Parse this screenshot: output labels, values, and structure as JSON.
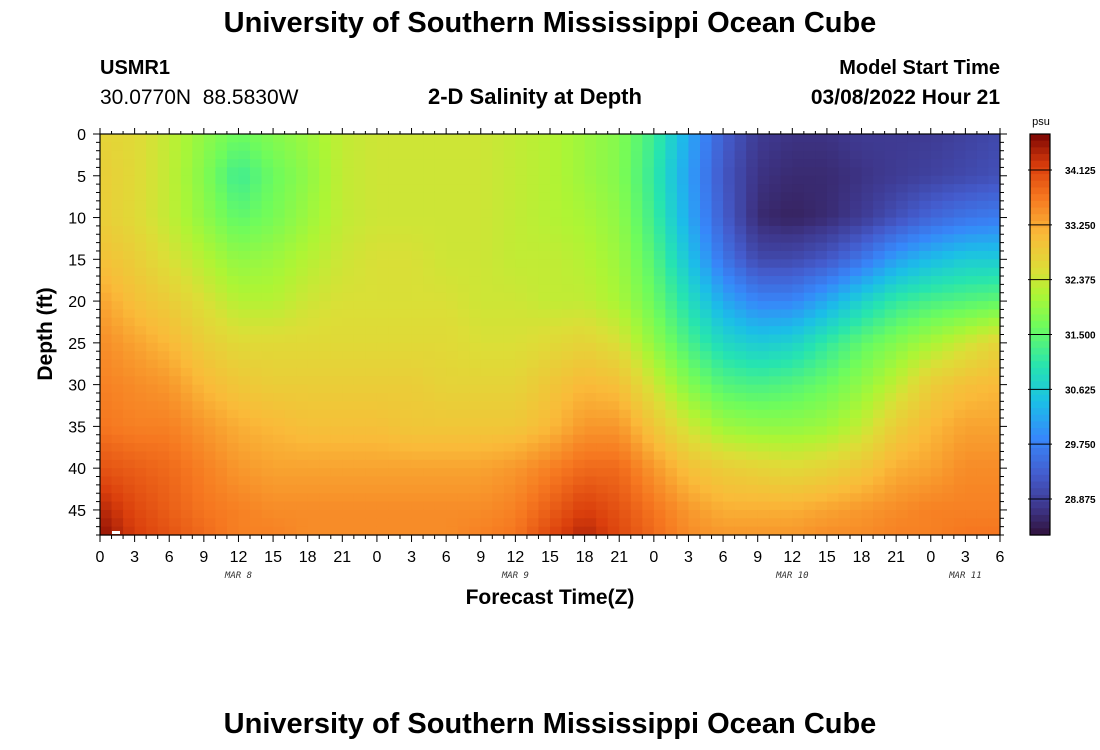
{
  "header": {
    "title": "University of Southern Mississippi Ocean Cube",
    "station_id": "USMR1",
    "coordinates": "30.0770N  88.5830W",
    "plot_title": "2-D Salinity at Depth",
    "model_start_label": "Model Start Time",
    "model_start_value": "03/08/2022 Hour 21"
  },
  "footer": {
    "title": "University of Southern Mississippi Ocean Cube"
  },
  "chart_data": {
    "type": "heatmap",
    "title": "2-D Salinity at Depth",
    "xlabel": "Forecast Time(Z)",
    "ylabel": "Depth (ft)",
    "x_unit": "hours since 03/08 00Z",
    "xlim": [
      0,
      78
    ],
    "ylim": [
      0,
      48
    ],
    "y_ticks": [
      "0",
      "5",
      "10",
      "15",
      "20",
      "25",
      "30",
      "35",
      "40",
      "45"
    ],
    "x_ticks": [
      "0",
      "3",
      "6",
      "9",
      "12",
      "15",
      "18",
      "21",
      "0",
      "3",
      "6",
      "9",
      "12",
      "15",
      "18",
      "21",
      "0",
      "3",
      "6",
      "9",
      "12",
      "15",
      "18",
      "21",
      "0",
      "3",
      "6"
    ],
    "day_labels": [
      {
        "label": "MAR 8",
        "hour": 12
      },
      {
        "label": "MAR 9",
        "hour": 36
      },
      {
        "label": "MAR 10",
        "hour": 60
      },
      {
        "label": "MAR 11",
        "hour": 75
      }
    ],
    "colorbar": {
      "unit": "psu",
      "min": 28.3,
      "max": 34.7,
      "ticks": [
        "34.125",
        "33.250",
        "32.375",
        "31.500",
        "30.625",
        "29.750",
        "28.875"
      ]
    },
    "depth_rows": [
      0,
      5,
      10,
      15,
      20,
      25,
      30,
      35,
      40,
      45,
      48
    ],
    "time_cols": [
      0,
      3,
      6,
      9,
      12,
      15,
      18,
      21,
      24,
      27,
      30,
      33,
      36,
      39,
      42,
      45,
      48,
      51,
      54,
      57,
      60,
      63,
      66,
      69,
      72,
      75,
      78
    ],
    "salinity_psu": [
      [
        32.7,
        32.6,
        32.3,
        31.9,
        31.6,
        31.8,
        32.0,
        32.3,
        32.4,
        32.4,
        32.4,
        32.4,
        32.3,
        32.2,
        32.0,
        31.8,
        31.2,
        30.2,
        29.3,
        28.8,
        28.7,
        28.7,
        28.8,
        28.8,
        28.8,
        28.9,
        29.0
      ],
      [
        32.8,
        32.6,
        32.3,
        31.8,
        31.2,
        31.6,
        31.9,
        32.3,
        32.4,
        32.4,
        32.4,
        32.4,
        32.3,
        32.2,
        32.0,
        31.8,
        31.1,
        30.1,
        29.2,
        28.7,
        28.6,
        28.6,
        28.7,
        28.8,
        28.9,
        29.0,
        29.1
      ],
      [
        32.8,
        32.6,
        32.3,
        31.9,
        31.5,
        31.7,
        32.0,
        32.3,
        32.4,
        32.4,
        32.4,
        32.4,
        32.3,
        32.2,
        32.1,
        31.9,
        31.2,
        30.2,
        29.3,
        28.6,
        28.5,
        28.6,
        28.8,
        29.1,
        29.4,
        29.6,
        29.7
      ],
      [
        33.0,
        32.8,
        32.5,
        32.2,
        31.9,
        32.0,
        32.2,
        32.4,
        32.5,
        32.5,
        32.4,
        32.4,
        32.3,
        32.3,
        32.2,
        32.0,
        31.4,
        30.5,
        29.6,
        29.0,
        29.0,
        29.2,
        29.6,
        30.1,
        30.4,
        30.6,
        30.6
      ],
      [
        33.3,
        33.0,
        32.8,
        32.5,
        32.2,
        32.2,
        32.4,
        32.5,
        32.5,
        32.5,
        32.5,
        32.4,
        32.4,
        32.3,
        32.3,
        32.1,
        31.6,
        30.9,
        30.2,
        29.8,
        29.8,
        30.2,
        30.7,
        31.1,
        31.3,
        31.4,
        31.5
      ],
      [
        33.5,
        33.3,
        33.1,
        32.8,
        32.6,
        32.6,
        32.6,
        32.6,
        32.6,
        32.6,
        32.6,
        32.5,
        32.5,
        32.6,
        32.7,
        32.5,
        31.9,
        31.3,
        30.8,
        30.6,
        30.7,
        31.1,
        31.5,
        31.8,
        32.1,
        32.4,
        32.7
      ],
      [
        33.6,
        33.5,
        33.4,
        33.1,
        32.9,
        32.8,
        32.8,
        32.8,
        32.8,
        32.8,
        32.7,
        32.7,
        32.7,
        32.9,
        33.1,
        33.0,
        32.4,
        31.8,
        31.4,
        31.3,
        31.4,
        31.6,
        31.9,
        32.3,
        32.8,
        33.0,
        33.1
      ],
      [
        33.7,
        33.6,
        33.6,
        33.4,
        33.2,
        33.1,
        33.0,
        33.0,
        33.0,
        32.9,
        32.9,
        32.9,
        32.9,
        33.1,
        33.4,
        33.4,
        32.9,
        32.4,
        32.0,
        31.9,
        31.9,
        32.0,
        32.3,
        32.8,
        33.1,
        33.3,
        33.3
      ],
      [
        34.0,
        33.9,
        33.8,
        33.6,
        33.4,
        33.3,
        33.3,
        33.3,
        33.3,
        33.3,
        33.3,
        33.3,
        33.4,
        33.6,
        33.8,
        33.8,
        33.4,
        33.0,
        32.8,
        32.7,
        32.6,
        32.7,
        32.9,
        33.2,
        33.3,
        33.5,
        33.5
      ],
      [
        34.4,
        34.1,
        33.9,
        33.7,
        33.6,
        33.5,
        33.5,
        33.5,
        33.5,
        33.5,
        33.5,
        33.5,
        33.6,
        33.9,
        34.2,
        34.0,
        33.7,
        33.4,
        33.2,
        33.2,
        33.2,
        33.3,
        33.4,
        33.5,
        33.6,
        33.6,
        33.6
      ],
      [
        34.6,
        34.2,
        34.0,
        33.8,
        33.6,
        33.6,
        33.5,
        33.5,
        33.5,
        33.5,
        33.5,
        33.6,
        33.7,
        34.1,
        34.4,
        34.1,
        33.8,
        33.5,
        33.4,
        33.4,
        33.4,
        33.5,
        33.5,
        33.6,
        33.6,
        33.7,
        33.7
      ]
    ]
  }
}
